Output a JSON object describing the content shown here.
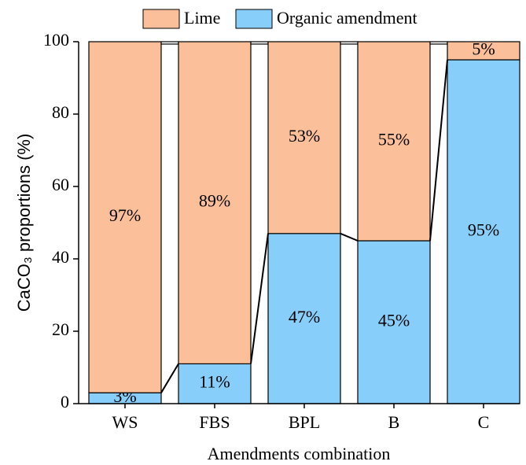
{
  "chart_data": {
    "type": "stacked_bar",
    "x_label": "Amendments combination",
    "y_label": "CaCO₃ proportions (%)",
    "categories": [
      "WS",
      "FBS",
      "BPL",
      "B",
      "C"
    ],
    "series": [
      {
        "name": "Organic amendment",
        "color": "#87cefa",
        "values": [
          3,
          11,
          47,
          45,
          95
        ],
        "value_labels": [
          "3%",
          "11%",
          "47%",
          "45%",
          "95%"
        ]
      },
      {
        "name": "Lime",
        "color": "#fbbf99",
        "values": [
          97,
          89,
          53,
          55,
          5
        ],
        "value_labels": [
          "97%",
          "89%",
          "53%",
          "55%",
          "5%"
        ]
      }
    ],
    "ylim": [
      0,
      100
    ],
    "yticks": [
      0,
      20,
      40,
      60,
      80,
      100
    ]
  }
}
